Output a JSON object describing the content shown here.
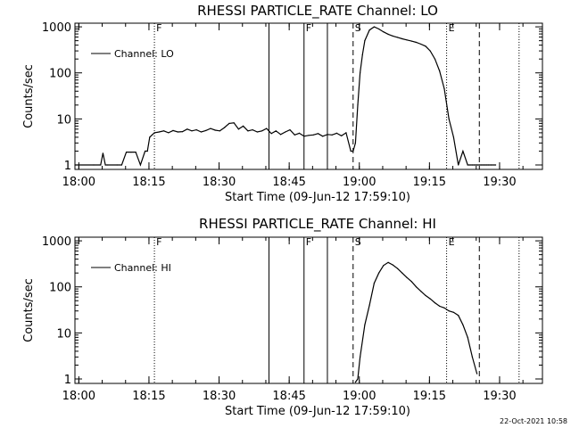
{
  "chart_data": [
    {
      "type": "line",
      "title": "RHESSI PARTICLE_RATE Channel: LO",
      "xlabel": "Start Time (09-Jun-12 17:59:10)",
      "ylabel": "Counts/sec",
      "x_tick_labels": [
        "18:00",
        "18:15",
        "18:30",
        "18:45",
        "19:00",
        "19:15",
        "19:30"
      ],
      "x_tick_minutes": [
        0.83,
        15.83,
        30.83,
        45.83,
        60.83,
        75.83,
        90.83
      ],
      "xlim_minutes": [
        0,
        100
      ],
      "y_scale": "log",
      "y_tick_labels": [
        "1",
        "10",
        "100",
        "1000"
      ],
      "y_ticks": [
        1,
        10,
        100,
        1000
      ],
      "ylim": [
        0.8,
        1200
      ],
      "legend": {
        "position": "top-left",
        "entries": [
          "Channel: LO"
        ]
      },
      "series": [
        {
          "name": "Channel: LO",
          "x": [
            0,
            4,
            5.5,
            6,
            6.5,
            7,
            9,
            10,
            11,
            12,
            13,
            14,
            15,
            15.5,
            16,
            16.5,
            17,
            18,
            19,
            20,
            21,
            22,
            23,
            24,
            25,
            26,
            27,
            28,
            29,
            30,
            31,
            32,
            33,
            34,
            35,
            36,
            37,
            38,
            39,
            40,
            41,
            42,
            43,
            44,
            45,
            46,
            47,
            48,
            49,
            50,
            51,
            52,
            53,
            54,
            55,
            56,
            57,
            58,
            59,
            59.5,
            60,
            60.5,
            61,
            61.5,
            62,
            63,
            64,
            65,
            66,
            67,
            68,
            69,
            70,
            71,
            72,
            73,
            74,
            75,
            76,
            77,
            78,
            79,
            80,
            81,
            82,
            83,
            84,
            84.5,
            85,
            85.5,
            86,
            86.5,
            87,
            87.5,
            88,
            88.5,
            89,
            90
          ],
          "y": [
            1,
            1,
            1,
            1.8,
            1,
            1,
            1,
            1,
            1.9,
            1.9,
            1.9,
            1,
            2,
            2,
            4,
            4.5,
            5,
            5.2,
            5.5,
            5,
            5.6,
            5.2,
            5.3,
            6,
            5.5,
            5.8,
            5.2,
            5.6,
            6.2,
            5.7,
            5.5,
            6.5,
            8,
            8.2,
            6,
            7,
            5.5,
            5.8,
            5.2,
            5.5,
            6.2,
            4.8,
            5.5,
            4.6,
            5.2,
            5.8,
            4.5,
            4.9,
            4.2,
            4.4,
            4.5,
            4.8,
            4.2,
            4.6,
            4.5,
            4.9,
            4.3,
            5,
            2,
            2,
            3,
            20,
            100,
            250,
            500,
            850,
            1000,
            900,
            780,
            690,
            630,
            590,
            550,
            520,
            490,
            460,
            420,
            380,
            300,
            200,
            110,
            45,
            10,
            4,
            1,
            2,
            1,
            1,
            1,
            1,
            1,
            1,
            1,
            1,
            1,
            1,
            1,
            1
          ],
          "visible_range_minutes": [
            0,
            100
          ]
        }
      ],
      "markers": [
        {
          "label": "F",
          "minute": 17.0,
          "style": "dotted"
        },
        {
          "label": "",
          "minute": 41.5,
          "style": "solid"
        },
        {
          "label": "F",
          "minute": 49.0,
          "style": "solid"
        },
        {
          "label": "",
          "minute": 54.0,
          "style": "solid"
        },
        {
          "label": "S",
          "minute": 59.5,
          "style": "dashed"
        },
        {
          "label": "E",
          "minute": 79.5,
          "style": "dotted"
        },
        {
          "label": "",
          "minute": 86.5,
          "style": "dashed"
        },
        {
          "label": "",
          "minute": 95.0,
          "style": "dotted"
        }
      ]
    },
    {
      "type": "line",
      "title": "RHESSI PARTICLE_RATE Channel: HI",
      "xlabel": "Start Time (09-Jun-12 17:59:10)",
      "ylabel": "Counts/sec",
      "x_tick_labels": [
        "18:00",
        "18:15",
        "18:30",
        "18:45",
        "19:00",
        "19:15",
        "19:30"
      ],
      "x_tick_minutes": [
        0.83,
        15.83,
        30.83,
        45.83,
        60.83,
        75.83,
        90.83
      ],
      "xlim_minutes": [
        0,
        100
      ],
      "y_scale": "log",
      "y_tick_labels": [
        "1",
        "10",
        "100",
        "1000"
      ],
      "y_ticks": [
        1,
        10,
        100,
        1000
      ],
      "ylim": [
        0.8,
        1200
      ],
      "legend": {
        "position": "top-left",
        "entries": [
          "Channel: HI"
        ]
      },
      "series": [
        {
          "name": "Channel: HI",
          "x": [
            60,
            60.5,
            61,
            62,
            63,
            64,
            65,
            66,
            67,
            68,
            69,
            70,
            71,
            72,
            73,
            74,
            75,
            76,
            77,
            78,
            79,
            80,
            81,
            82,
            83,
            84,
            85,
            86
          ],
          "y": [
            0.85,
            1,
            3,
            15,
            40,
            120,
            200,
            290,
            340,
            300,
            250,
            200,
            160,
            130,
            100,
            80,
            65,
            55,
            45,
            38,
            35,
            30,
            28,
            24,
            15,
            8,
            3,
            1.3
          ]
        }
      ],
      "markers": [
        {
          "label": "F",
          "minute": 17.0,
          "style": "dotted"
        },
        {
          "label": "",
          "minute": 41.5,
          "style": "solid"
        },
        {
          "label": "F",
          "minute": 49.0,
          "style": "solid"
        },
        {
          "label": "",
          "minute": 54.0,
          "style": "solid"
        },
        {
          "label": "S",
          "minute": 59.5,
          "style": "dashed"
        },
        {
          "label": "E",
          "minute": 79.5,
          "style": "dotted"
        },
        {
          "label": "",
          "minute": 86.5,
          "style": "dashed"
        },
        {
          "label": "",
          "minute": 95.0,
          "style": "dotted"
        }
      ]
    }
  ],
  "footer": {
    "timestamp": "22-Oct-2021 10:58"
  },
  "colors": {
    "background": "#ffffff",
    "foreground": "#000000"
  }
}
